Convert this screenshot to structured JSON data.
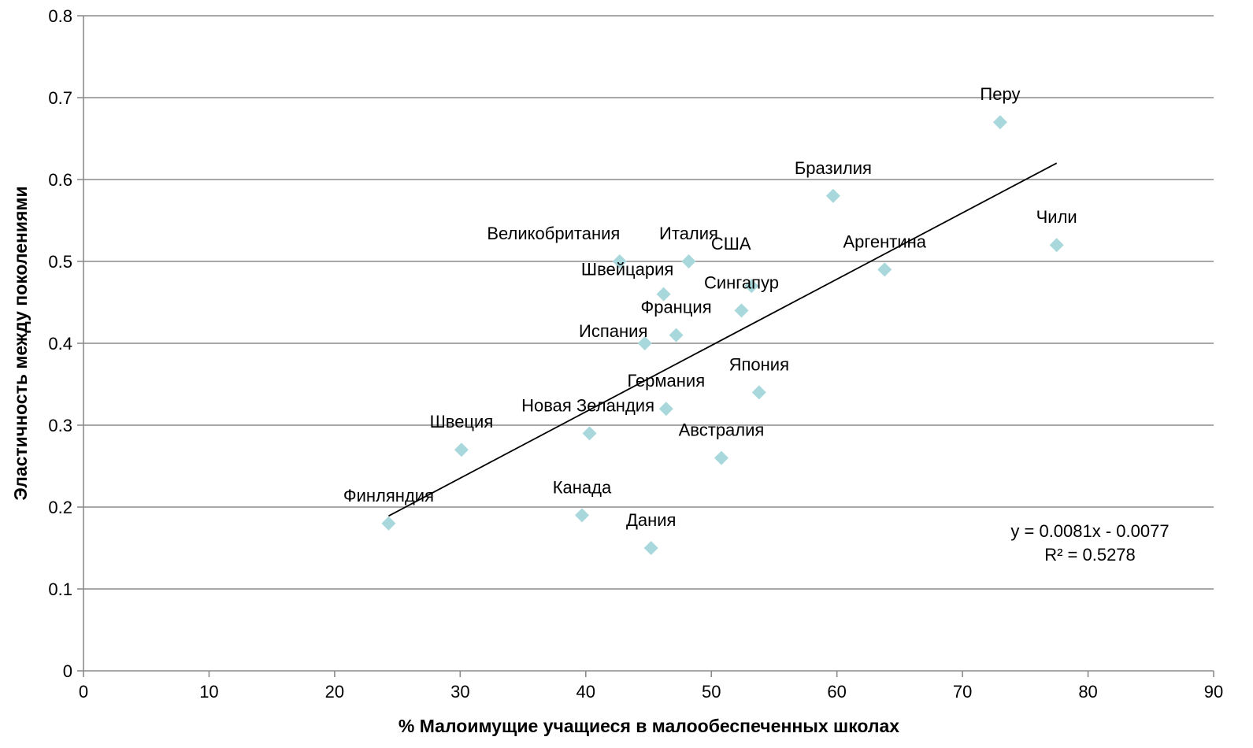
{
  "chart_data": {
    "type": "scatter",
    "xlabel": "% Малоимущие учащиеся в малообеспеченных школах",
    "ylabel": "Эластичность  между поколениями",
    "xlim": [
      0,
      90
    ],
    "ylim": [
      0,
      0.8
    ],
    "x_ticks": [
      0,
      10,
      20,
      30,
      40,
      50,
      60,
      70,
      80,
      90
    ],
    "y_ticks": [
      0,
      0.1,
      0.2,
      0.3,
      0.4,
      0.5,
      0.6,
      0.7,
      0.8
    ],
    "x_tick_labels": [
      "0",
      "10",
      "20",
      "30",
      "40",
      "50",
      "60",
      "70",
      "80",
      "90"
    ],
    "y_tick_labels": [
      "0",
      "0.1",
      "0.2",
      "0.3",
      "0.4",
      "0.5",
      "0.6",
      "0.7",
      "0.8"
    ],
    "grid": "horizontal",
    "marker_color": "#a8d8dc",
    "points": [
      {
        "label": "Перу",
        "x": 73.0,
        "y": 0.67
      },
      {
        "label": "Бразилия",
        "x": 59.7,
        "y": 0.58
      },
      {
        "label": "Чили",
        "x": 77.5,
        "y": 0.52
      },
      {
        "label": "Аргентина",
        "x": 63.8,
        "y": 0.49
      },
      {
        "label": "Великобритания",
        "x": 42.7,
        "y": 0.5
      },
      {
        "label": "Италия",
        "x": 48.2,
        "y": 0.5
      },
      {
        "label": "США",
        "x": 53.2,
        "y": 0.47
      },
      {
        "label": "Швейцария",
        "x": 46.2,
        "y": 0.46
      },
      {
        "label": "Сингапур",
        "x": 52.4,
        "y": 0.44
      },
      {
        "label": "Франция",
        "x": 47.2,
        "y": 0.41
      },
      {
        "label": "Испания",
        "x": 44.7,
        "y": 0.4
      },
      {
        "label": "Япония",
        "x": 53.8,
        "y": 0.34
      },
      {
        "label": "Германия",
        "x": 46.4,
        "y": 0.32
      },
      {
        "label": "Новая Зеландия",
        "x": 40.3,
        "y": 0.29
      },
      {
        "label": "Швеция",
        "x": 30.1,
        "y": 0.27
      },
      {
        "label": "Австралия",
        "x": 50.8,
        "y": 0.26
      },
      {
        "label": "Финляндия",
        "x": 24.3,
        "y": 0.18
      },
      {
        "label": "Канада",
        "x": 39.7,
        "y": 0.19
      },
      {
        "label": "Дания",
        "x": 45.2,
        "y": 0.15
      }
    ],
    "trendline": {
      "x_start": 24.3,
      "x_end": 77.5,
      "slope": 0.0081,
      "intercept": -0.0077,
      "equation_text": "y = 0.0081x - 0.0077",
      "r2_text": "R² = 0.5278"
    }
  }
}
